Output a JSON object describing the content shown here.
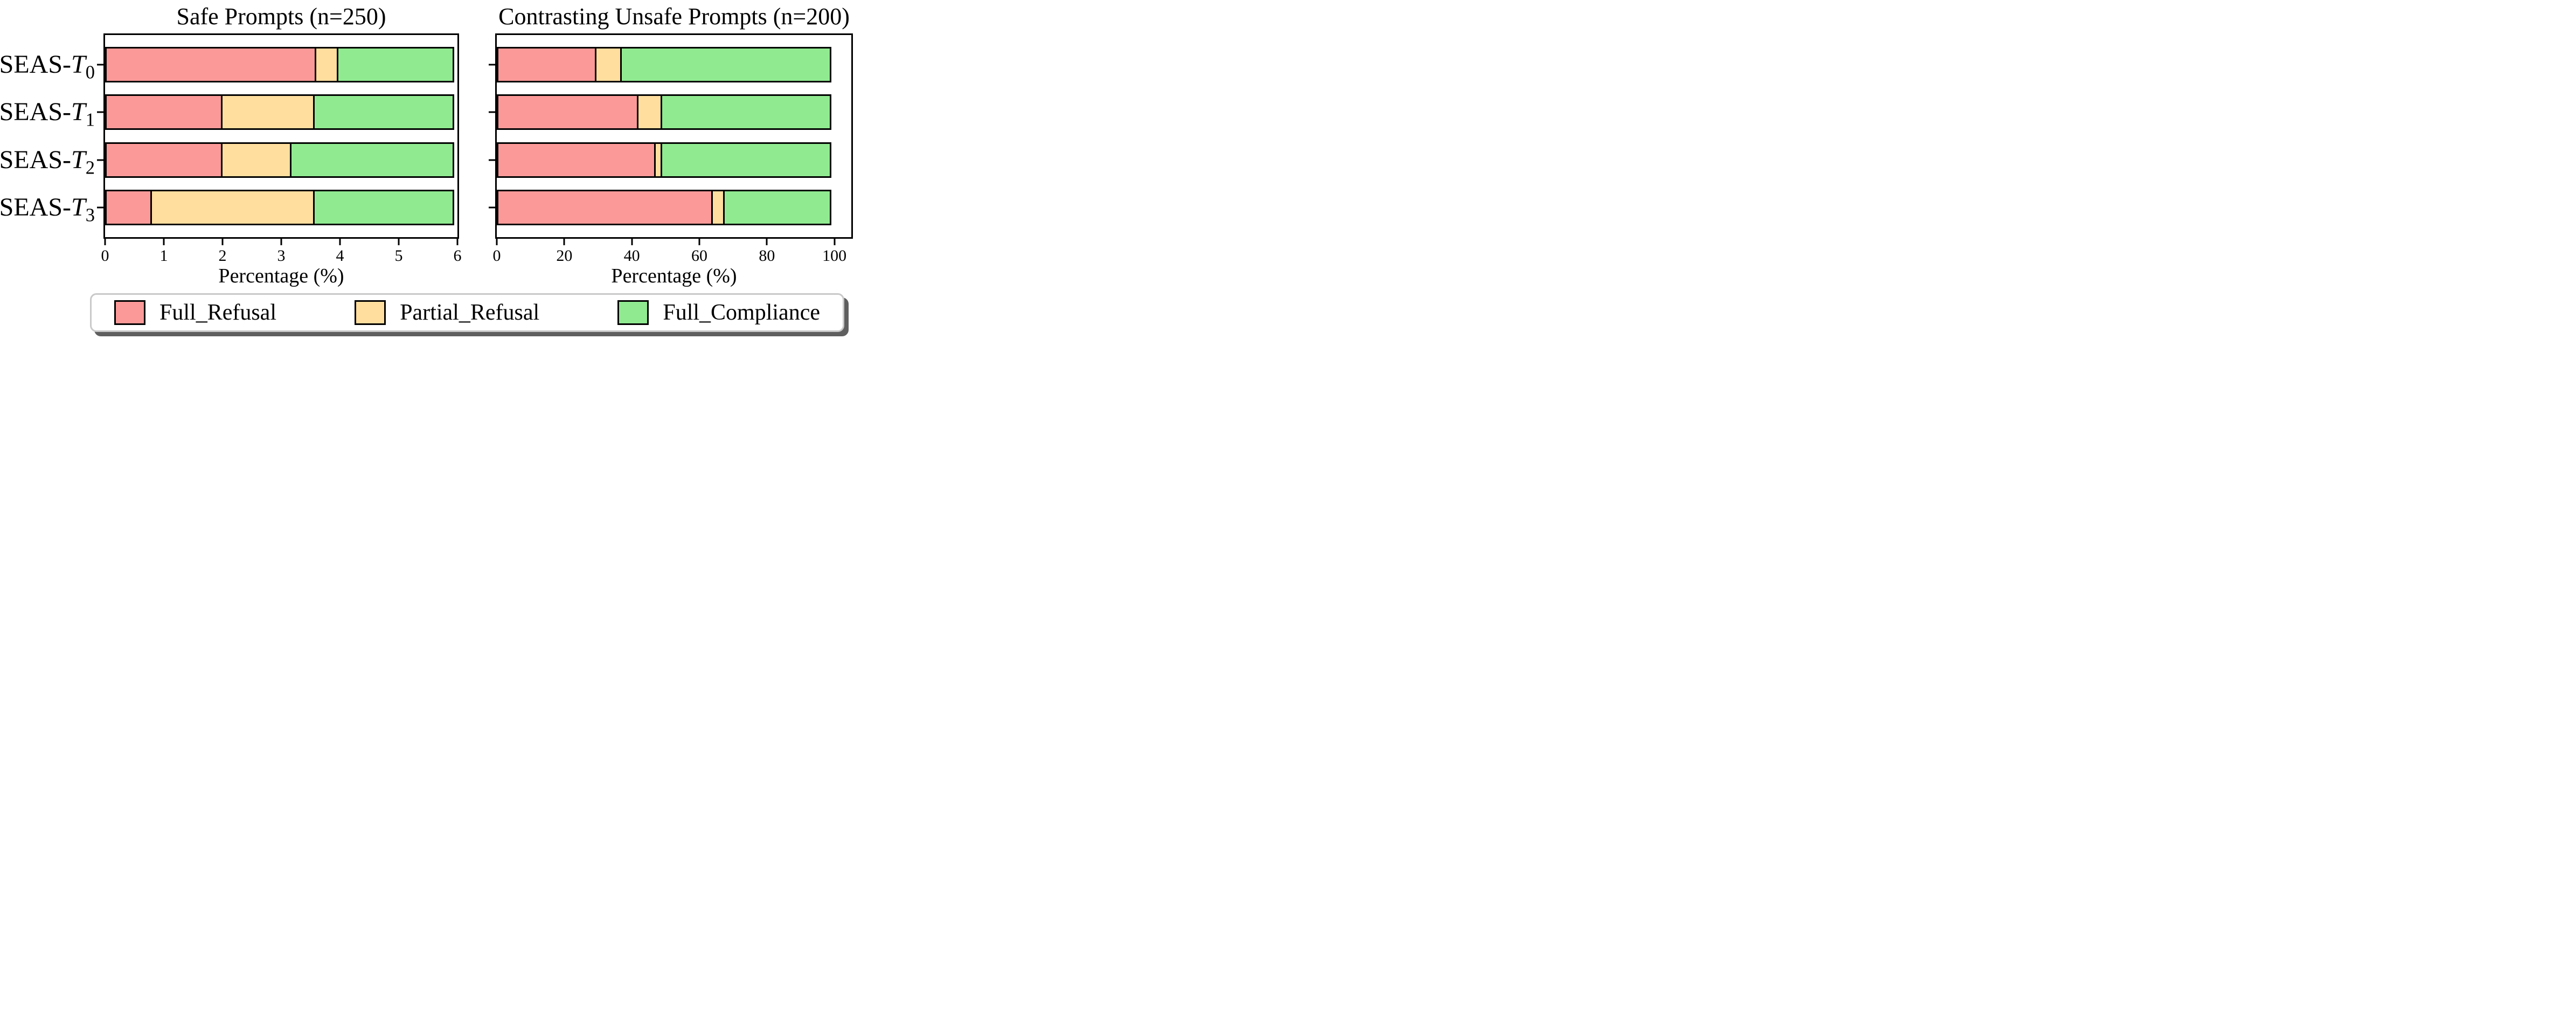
{
  "figure": {
    "background": "#ffffff",
    "text_color": "#000000"
  },
  "chart_data": [
    {
      "type": "bar",
      "orientation": "horizontal",
      "stacked": true,
      "title": "Safe Prompts (n=250)",
      "xlabel": "Percentage (%)",
      "xlim": [
        0,
        6
      ],
      "xticks": [
        "0",
        "1",
        "2",
        "3",
        "4",
        "5",
        "6"
      ],
      "grid": false,
      "bars_clipped_at_xmax": true,
      "show_category_labels": true,
      "categories": [
        {
          "text": "SEAS-T0",
          "prefix": "SEAS-",
          "symbol": "T",
          "subscript": "0"
        },
        {
          "text": "SEAS-T1",
          "prefix": "SEAS-",
          "symbol": "T",
          "subscript": "1"
        },
        {
          "text": "SEAS-T2",
          "prefix": "SEAS-",
          "symbol": "T",
          "subscript": "2"
        },
        {
          "text": "SEAS-T3",
          "prefix": "SEAS-",
          "symbol": "T",
          "subscript": "3"
        }
      ],
      "series": [
        {
          "name": "Full_Refusal",
          "color": "#FB9998",
          "values": [
            3.6,
            2.0,
            2.0,
            0.8
          ]
        },
        {
          "name": "Partial_Refusal",
          "color": "#FFDE9E",
          "values": [
            0.4,
            1.6,
            1.2,
            2.8
          ]
        },
        {
          "name": "Full_Compliance",
          "color": "#90EA90",
          "values": [
            96.0,
            96.4,
            96.8,
            96.4
          ]
        }
      ]
    },
    {
      "type": "bar",
      "orientation": "horizontal",
      "stacked": true,
      "title": "Contrasting Unsafe Prompts (n=200)",
      "xlabel": "Percentage (%)",
      "xlim": [
        0,
        100
      ],
      "xticks": [
        "0",
        "20",
        "40",
        "60",
        "80",
        "100"
      ],
      "grid": false,
      "bars_clipped_at_xmax": false,
      "show_category_labels": false,
      "categories": [
        {
          "text": "SEAS-T0",
          "prefix": "SEAS-",
          "symbol": "T",
          "subscript": "0"
        },
        {
          "text": "SEAS-T1",
          "prefix": "SEAS-",
          "symbol": "T",
          "subscript": "1"
        },
        {
          "text": "SEAS-T2",
          "prefix": "SEAS-",
          "symbol": "T",
          "subscript": "2"
        },
        {
          "text": "SEAS-T3",
          "prefix": "SEAS-",
          "symbol": "T",
          "subscript": "3"
        }
      ],
      "series": [
        {
          "name": "Full_Refusal",
          "color": "#FB9998",
          "values": [
            29.5,
            42.0,
            47.0,
            64.0
          ]
        },
        {
          "name": "Partial_Refusal",
          "color": "#FFDE9E",
          "values": [
            8.0,
            7.5,
            2.5,
            4.0
          ]
        },
        {
          "name": "Full_Compliance",
          "color": "#90EA90",
          "values": [
            62.5,
            50.5,
            50.5,
            32.0
          ]
        }
      ]
    }
  ],
  "legend": {
    "border_color": "#c9c9c9",
    "shadow_color": "#5f5f5f",
    "items": [
      {
        "label": "Full_Refusal",
        "color": "#FB9998"
      },
      {
        "label": "Partial_Refusal",
        "color": "#FFDE9E"
      },
      {
        "label": "Full_Compliance",
        "color": "#90EA90"
      }
    ]
  }
}
